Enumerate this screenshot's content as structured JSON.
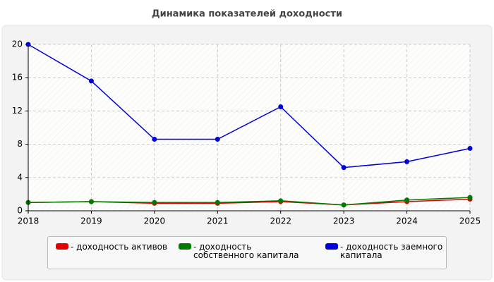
{
  "chart_data": {
    "type": "line",
    "title": "Динамика показателей доходности",
    "categories": [
      "2018",
      "2019",
      "2020",
      "2021",
      "2022",
      "2023",
      "2024",
      "2025"
    ],
    "series": [
      {
        "name": "- доходность активов",
        "color": "#e00000",
        "values": [
          1.0,
          1.1,
          0.9,
          0.9,
          1.1,
          0.7,
          1.1,
          1.4
        ]
      },
      {
        "name": "- доходность собственного капитала",
        "color": "#007a00",
        "values": [
          1.0,
          1.1,
          1.0,
          1.0,
          1.2,
          0.7,
          1.3,
          1.6
        ]
      },
      {
        "name": "- доходность заемного капитала",
        "color": "#0000dd",
        "values": [
          20.0,
          15.6,
          8.6,
          8.6,
          12.5,
          5.2,
          5.9,
          7.5
        ]
      }
    ],
    "ylim": [
      0,
      20
    ],
    "yticks": [
      0,
      4,
      8,
      12,
      16,
      20
    ],
    "grid": true
  }
}
